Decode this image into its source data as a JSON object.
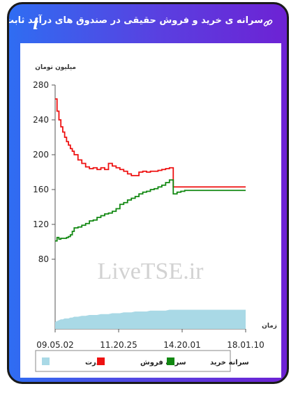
{
  "header": {
    "title": "سرانه ی خرید و فروش حقیقی در صندوق های درآمد ثابت",
    "info_icon": "i"
  },
  "chart_data": {
    "type": "line",
    "ylabel": "میلیون تومان",
    "xlabel": "زمان",
    "ylim": [
      0,
      280
    ],
    "yticks": [
      80,
      120,
      160,
      200,
      240,
      280
    ],
    "xticks": [
      "09.05.02",
      "11.20.25",
      "14.20.01",
      "18.01.10"
    ],
    "watermark": "LiveTSE.ir",
    "colors": {
      "sell": "#ee1111",
      "buy": "#118811",
      "power": "#a9d9e6"
    },
    "legend": [
      "قدرت",
      "سرانه فروش",
      "سرانه خرید"
    ],
    "x": [
      0,
      1,
      2,
      3,
      4,
      5,
      6,
      7,
      8,
      9,
      10,
      12,
      14,
      16,
      18,
      20,
      22,
      24,
      26,
      28,
      30,
      32,
      34,
      36,
      38,
      40,
      42,
      44,
      46,
      48,
      50,
      52,
      54,
      56,
      58,
      60,
      62,
      64,
      66,
      68,
      70,
      72,
      74,
      76,
      78,
      80,
      82,
      84,
      86,
      88,
      90,
      92,
      94,
      96,
      98,
      100
    ],
    "series": [
      {
        "name": "سرانه فروش",
        "values": [
          264,
          250,
          240,
          232,
          226,
          220,
          215,
          211,
          207,
          204,
          200,
          194,
          190,
          186,
          184,
          185,
          183,
          185,
          183,
          190,
          187,
          185,
          183,
          181,
          178,
          176,
          176,
          180,
          181,
          180,
          181,
          181,
          182,
          183,
          184,
          185,
          163,
          163,
          163,
          163,
          163,
          163,
          163,
          163,
          163,
          163,
          163,
          163,
          163,
          163,
          163,
          163,
          163,
          163,
          163,
          163
        ]
      },
      {
        "name": "سرانه خرید",
        "values": [
          101,
          105,
          103,
          104,
          104,
          104,
          105,
          106,
          108,
          112,
          116,
          117,
          119,
          121,
          124,
          125,
          128,
          130,
          132,
          133,
          135,
          138,
          143,
          145,
          148,
          150,
          152,
          155,
          157,
          158,
          160,
          161,
          163,
          165,
          168,
          171,
          155,
          157,
          158,
          159,
          159,
          159,
          159,
          159,
          159,
          159,
          159,
          159,
          159,
          159,
          159,
          159,
          159,
          159,
          159,
          159
        ]
      },
      {
        "name": "قدرت",
        "values": [
          8,
          9,
          10,
          11,
          11,
          12,
          12,
          12,
          13,
          13,
          14,
          14,
          15,
          15,
          16,
          16,
          16,
          17,
          17,
          17,
          18,
          18,
          18,
          19,
          19,
          19,
          20,
          20,
          20,
          20,
          21,
          21,
          21,
          21,
          21,
          22,
          22,
          22,
          22,
          22,
          22,
          22,
          22,
          22,
          22,
          22,
          22,
          22,
          22,
          22,
          22,
          22,
          22,
          22,
          22,
          22
        ]
      }
    ]
  }
}
